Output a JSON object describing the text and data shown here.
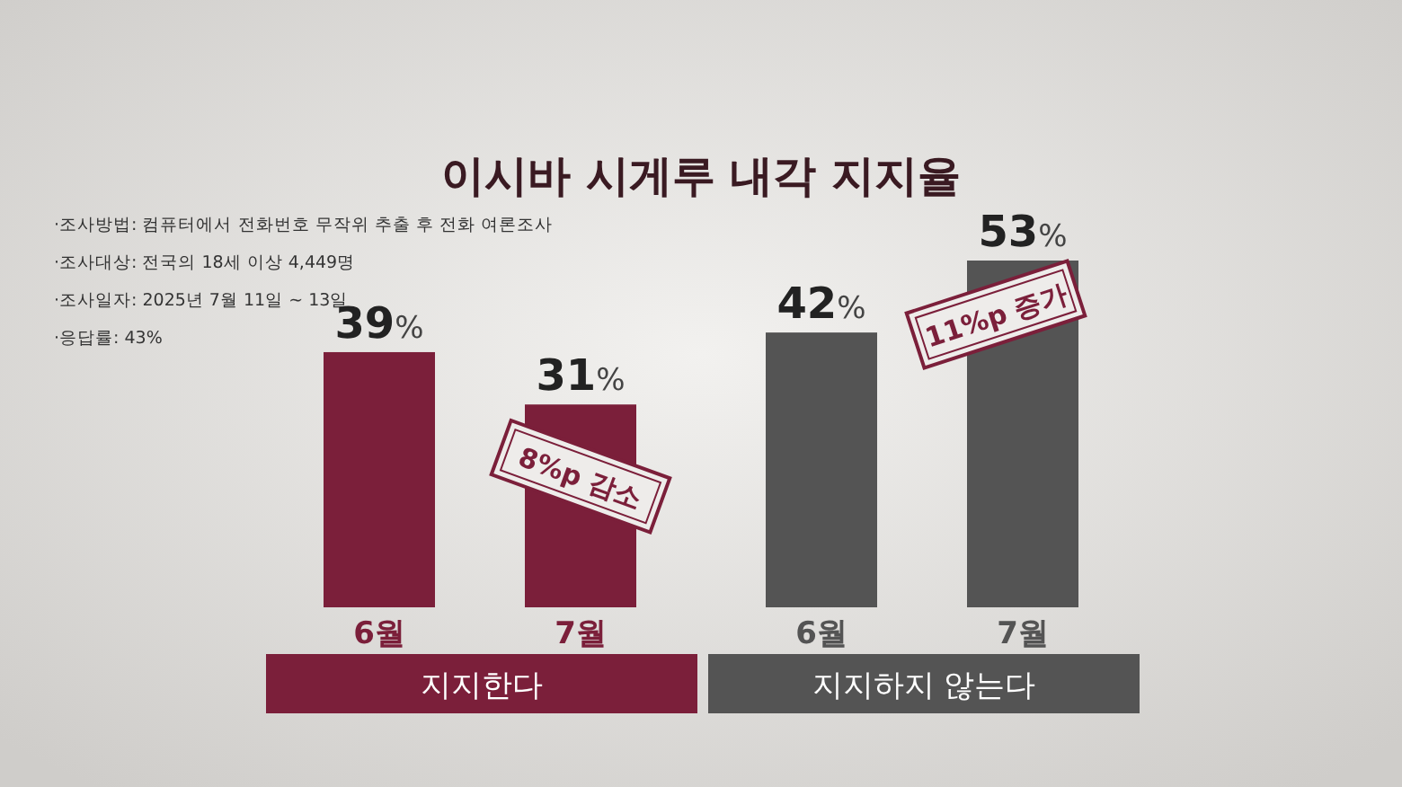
{
  "chart_data": {
    "type": "bar",
    "title": "이시바 시게루 내각 지지율",
    "categories": [
      "6월",
      "7월",
      "6월",
      "7월"
    ],
    "series": [
      {
        "name": "지지한다",
        "color": "#7b1f3a",
        "values": [
          39,
          31,
          null,
          null
        ],
        "value_labels": [
          "39%",
          "31%",
          null,
          null
        ]
      },
      {
        "name": "지지하지 않는다",
        "color": "#545454",
        "values": [
          null,
          null,
          42,
          53
        ],
        "value_labels": [
          null,
          null,
          "42%",
          "53%"
        ]
      }
    ],
    "legend": "bottom",
    "annotations": [
      "·조사방법: 컴퓨터에서 전화번호 무작위 추출 후 전화 여론조사",
      "·조사대상: 전국의 18세 이상 4,449명",
      "·조사일자: 2025년 7월 11일 ~ 13일",
      "·응답률: 43%",
      "8%p 감소",
      "11%p 증가"
    ]
  }
}
